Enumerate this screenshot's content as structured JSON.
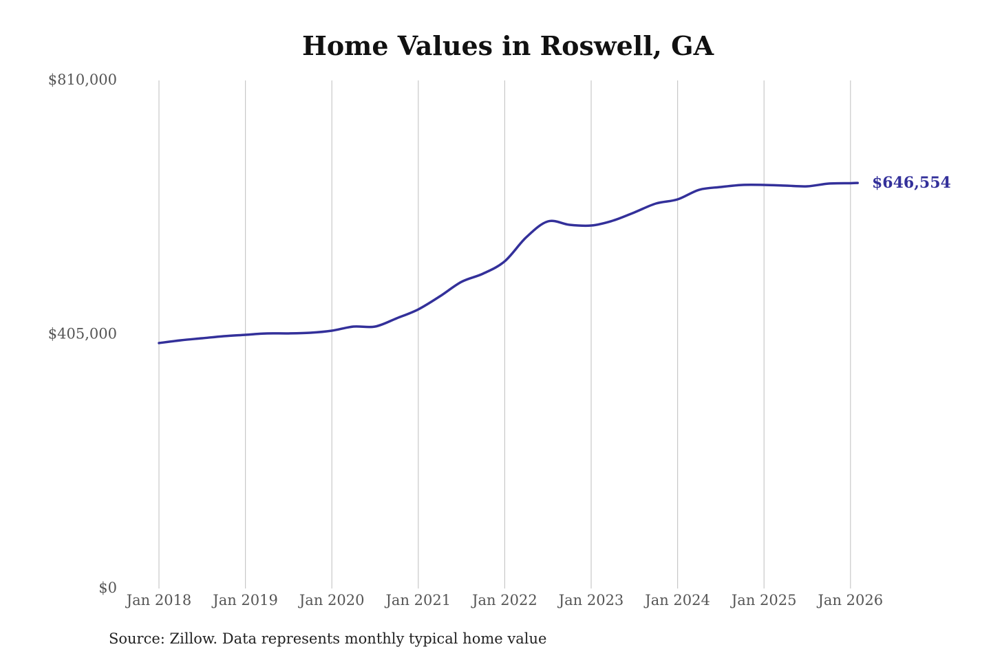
{
  "chart_data": {
    "type": "line",
    "title": "Home Values in Roswell, GA",
    "source": "Source: Zillow. Data represents monthly typical home value",
    "xlabel": "",
    "ylabel": "",
    "ylim": [
      0,
      810000
    ],
    "y_ticks": [
      0,
      405000,
      810000
    ],
    "y_tick_labels": [
      "$0",
      "$405,000",
      "$810,000"
    ],
    "x_tick_labels": [
      "Jan 2018",
      "Jan 2019",
      "Jan 2020",
      "Jan 2021",
      "Jan 2022",
      "Jan 2023",
      "Jan 2024",
      "Jan 2025",
      "Jan 2026"
    ],
    "grid": "vertical",
    "line_color": "#33309a",
    "end_label": "$646,554",
    "series": [
      {
        "x": [
          "2018-01",
          "2018-04",
          "2018-07",
          "2018-10",
          "2019-01",
          "2019-04",
          "2019-07",
          "2019-10",
          "2020-01",
          "2020-04",
          "2020-07",
          "2020-10",
          "2021-01",
          "2021-04",
          "2021-07",
          "2021-10",
          "2022-01",
          "2022-04",
          "2022-07",
          "2022-10",
          "2023-01",
          "2023-04",
          "2023-07",
          "2023-10",
          "2024-01",
          "2024-04",
          "2024-07",
          "2024-10",
          "2025-01",
          "2025-04",
          "2025-07",
          "2025-10",
          "2026-01",
          "2026-02"
        ],
        "values": [
          391300,
          395700,
          399000,
          402300,
          404500,
          406700,
          406700,
          407700,
          411000,
          417600,
          417600,
          430800,
          445000,
          465800,
          488900,
          502000,
          521700,
          560100,
          585300,
          579800,
          578700,
          586400,
          599600,
          613800,
          620400,
          635700,
          640100,
          643400,
          643400,
          642300,
          641200,
          645600,
          646200,
          646554
        ]
      }
    ]
  }
}
